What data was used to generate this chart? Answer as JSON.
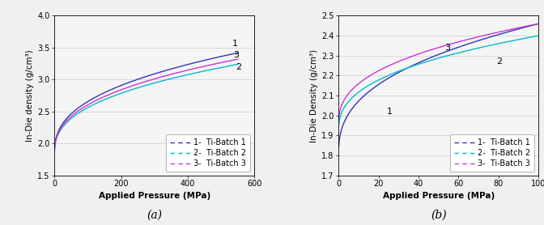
{
  "panel_a": {
    "title": "(a)",
    "xlabel": "Applied Pressure (MPa)",
    "ylabel": "In-Die density (g/cm³)",
    "xlim": [
      0,
      600
    ],
    "ylim": [
      1.5,
      4.0
    ],
    "xticks": [
      0,
      200,
      400,
      600
    ],
    "yticks": [
      1.5,
      2.0,
      2.5,
      3.0,
      3.5,
      4.0
    ],
    "x_max": 550,
    "curves": [
      {
        "label": "1-  Ti-Batch 1",
        "color": "#3333bb",
        "y0": 1.82,
        "y_end": 3.42,
        "alpha": 0.38,
        "annotation": "1",
        "ann_x": 533,
        "ann_y": 3.56
      },
      {
        "label": "2-  Ti-Batch 2",
        "color": "#00bbcc",
        "y0": 1.82,
        "y_end": 3.24,
        "alpha": 0.38,
        "annotation": "2",
        "ann_x": 543,
        "ann_y": 3.2
      },
      {
        "label": "3-  Ti-Batch 3",
        "color": "#cc33cc",
        "y0": 1.82,
        "y_end": 3.32,
        "alpha": 0.38,
        "annotation": "3",
        "ann_x": 536,
        "ann_y": 3.38
      }
    ]
  },
  "panel_b": {
    "title": "(b)",
    "xlabel": "Applied Pressure (MPa)",
    "ylabel": "In-Die Density (g/cm³)",
    "xlim": [
      0,
      100
    ],
    "ylim": [
      1.7,
      2.5
    ],
    "xticks": [
      0,
      20,
      40,
      60,
      80,
      100
    ],
    "yticks": [
      1.7,
      1.8,
      1.9,
      2.0,
      2.1,
      2.2,
      2.3,
      2.4,
      2.5
    ],
    "x_max": 100,
    "curves": [
      {
        "label": "1-  Ti-Batch 1",
        "color": "#3333bb",
        "y0": 1.795,
        "y_end": 2.46,
        "alpha": 0.38,
        "annotation": "1",
        "ann_x": 24,
        "ann_y": 2.02
      },
      {
        "label": "2-  Ti-Batch 2",
        "color": "#00bbcc",
        "y0": 1.915,
        "y_end": 2.4,
        "alpha": 0.38,
        "annotation": "2",
        "ann_x": 79,
        "ann_y": 2.27
      },
      {
        "label": "3-  Ti-Batch 3",
        "color": "#cc33cc",
        "y0": 1.945,
        "y_end": 2.46,
        "alpha": 0.38,
        "annotation": "3",
        "ann_x": 53,
        "ann_y": 2.34
      }
    ]
  },
  "legend_labels": [
    "1-  Ti-Batch 1",
    "2-  Ti-Batch 2",
    "3-  Ti-Batch 3"
  ],
  "legend_colors": [
    "#3333bb",
    "#00bbcc",
    "#cc33cc"
  ],
  "background_color": "#f5f5f5",
  "grid_color": "#cccccc",
  "font_size_axis_label": 7.5,
  "font_size_tick": 7,
  "font_size_title": 10,
  "font_size_legend": 7,
  "font_size_annotation": 8
}
